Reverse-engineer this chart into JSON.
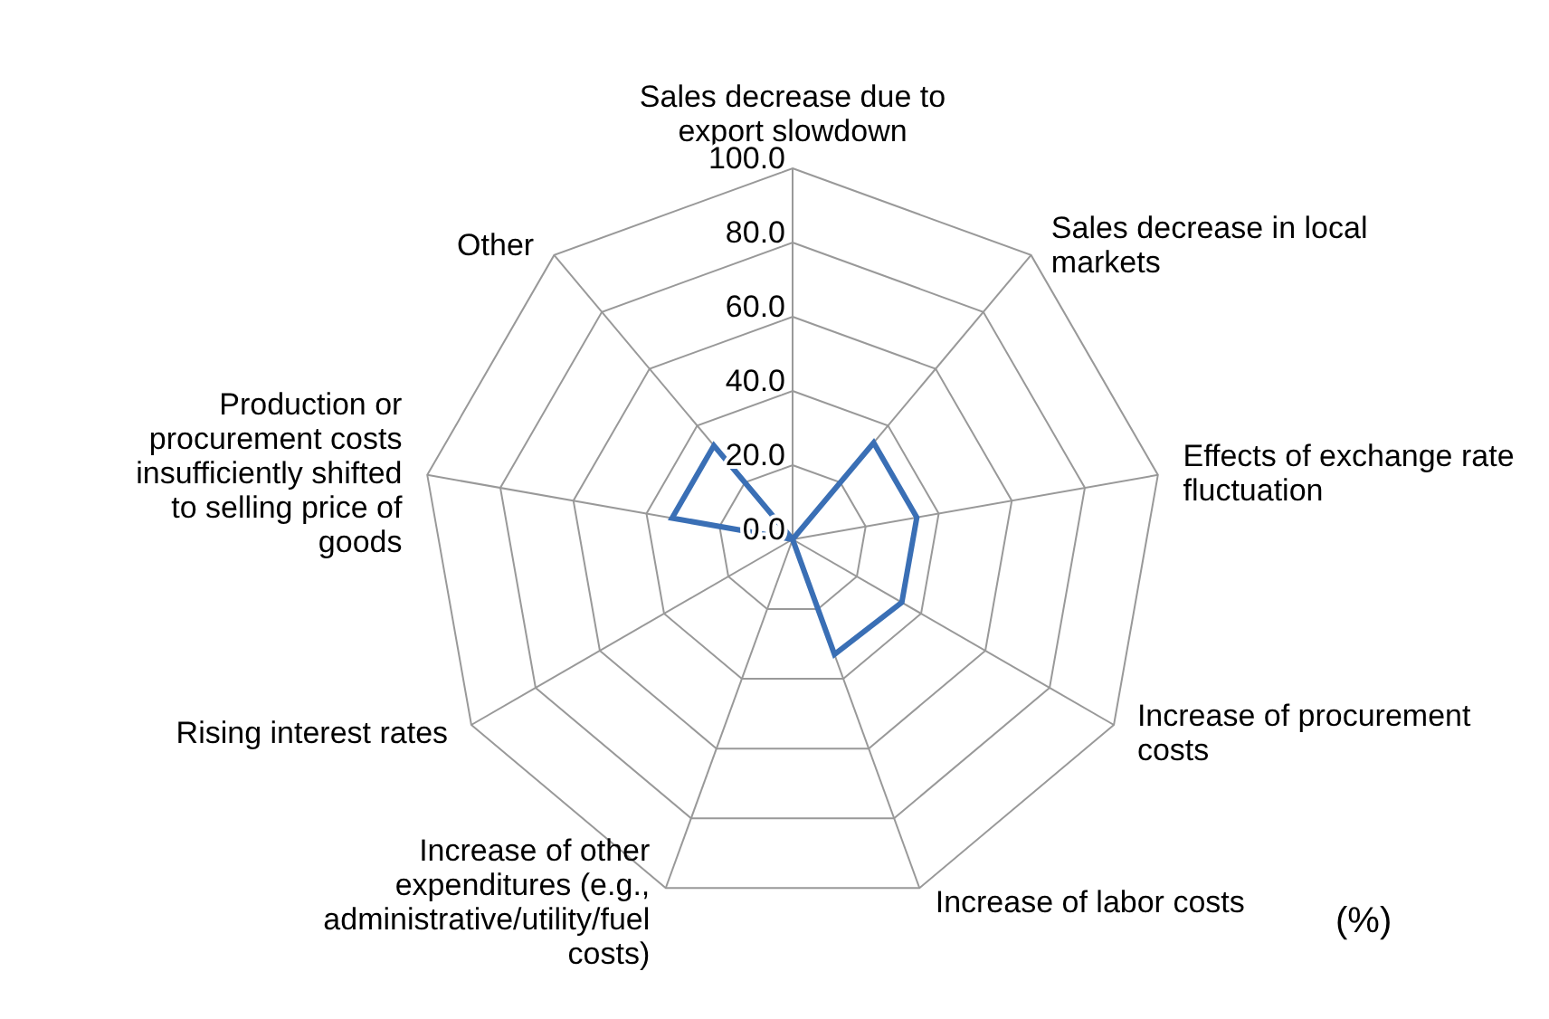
{
  "chart_data": {
    "type": "radar",
    "categories": [
      "Sales decrease due to export slowdown",
      "Sales decrease in local markets",
      "Effects of exchange rate fluctuation",
      "Increase of procurement costs",
      "Increase of labor costs",
      "Increase of other expenditures (e.g., administrative/utility/fuel costs)",
      "Rising interest rates",
      "Production or procurement costs insufficiently shifted to selling price of goods",
      "Other"
    ],
    "series": [
      {
        "color": "#3a6fb5",
        "values": [
          0,
          34,
          34,
          34,
          33,
          0,
          0,
          33,
          33
        ]
      }
    ],
    "ylim": [
      0,
      100
    ],
    "yticks": [
      {
        "value": 0,
        "label": "0.0"
      },
      {
        "value": 20,
        "label": "20.0"
      },
      {
        "value": 40,
        "label": "40.0"
      },
      {
        "value": 60,
        "label": "60.0"
      },
      {
        "value": 80,
        "label": "80.0"
      },
      {
        "value": 100,
        "label": "100.0"
      }
    ],
    "marker": "none",
    "legend": false,
    "annotations": [
      "(%)"
    ]
  }
}
